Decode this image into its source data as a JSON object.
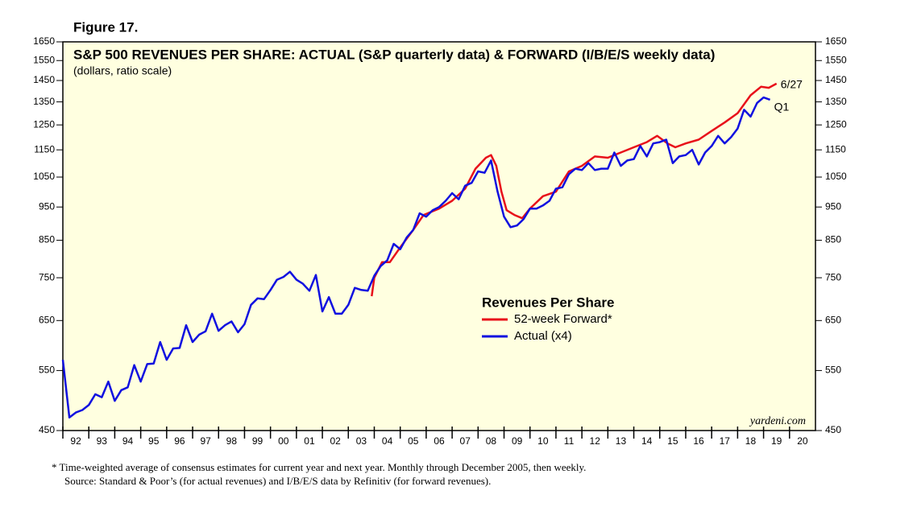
{
  "chart_data": {
    "type": "line",
    "figure": "Figure 17.",
    "title": "S&P 500 REVENUES PER SHARE: ACTUAL (S&P quarterly data) & FORWARD (I/B/E/S weekly data)",
    "subtitle": "(dollars, ratio scale)",
    "legend_title": "Revenues Per Share",
    "log_scale": true,
    "xlim": [
      1992,
      2021
    ],
    "xticks": [
      {
        "value": 1992,
        "label": "92"
      },
      {
        "value": 1993,
        "label": "93"
      },
      {
        "value": 1994,
        "label": "94"
      },
      {
        "value": 1995,
        "label": "95"
      },
      {
        "value": 1996,
        "label": "96"
      },
      {
        "value": 1997,
        "label": "97"
      },
      {
        "value": 1998,
        "label": "98"
      },
      {
        "value": 1999,
        "label": "99"
      },
      {
        "value": 2000,
        "label": "00"
      },
      {
        "value": 2001,
        "label": "01"
      },
      {
        "value": 2002,
        "label": "02"
      },
      {
        "value": 2003,
        "label": "03"
      },
      {
        "value": 2004,
        "label": "04"
      },
      {
        "value": 2005,
        "label": "05"
      },
      {
        "value": 2006,
        "label": "06"
      },
      {
        "value": 2007,
        "label": "07"
      },
      {
        "value": 2008,
        "label": "08"
      },
      {
        "value": 2009,
        "label": "09"
      },
      {
        "value": 2010,
        "label": "10"
      },
      {
        "value": 2011,
        "label": "11"
      },
      {
        "value": 2012,
        "label": "12"
      },
      {
        "value": 2013,
        "label": "13"
      },
      {
        "value": 2014,
        "label": "14"
      },
      {
        "value": 2015,
        "label": "15"
      },
      {
        "value": 2016,
        "label": "16"
      },
      {
        "value": 2017,
        "label": "17"
      },
      {
        "value": 2018,
        "label": "18"
      },
      {
        "value": 2019,
        "label": "19"
      },
      {
        "value": 2020,
        "label": "20"
      }
    ],
    "ylim": [
      450,
      1650
    ],
    "yticks": [
      450,
      550,
      650,
      750,
      850,
      950,
      1050,
      1150,
      1250,
      1350,
      1450,
      1550,
      1650
    ],
    "series": [
      {
        "name": "52-week Forward*",
        "color": "#e8101a",
        "annotation": "6/27",
        "x": [
          2003.9,
          2004.0,
          2004.3,
          2004.6,
          2005.0,
          2005.5,
          2005.9,
          2006.5,
          2007.0,
          2007.5,
          2007.9,
          2008.3,
          2008.5,
          2008.7,
          2008.9,
          2009.1,
          2009.4,
          2009.7,
          2010.0,
          2010.5,
          2011.0,
          2011.5,
          2012.0,
          2012.5,
          2013.0,
          2013.5,
          2014.0,
          2014.5,
          2014.9,
          2015.3,
          2015.6,
          2016.0,
          2016.5,
          2017.0,
          2017.5,
          2018.0,
          2018.5,
          2018.9,
          2019.2,
          2019.5
        ],
        "values": [
          705,
          750,
          790,
          790,
          830,
          880,
          925,
          945,
          970,
          1010,
          1080,
          1120,
          1130,
          1090,
          1000,
          940,
          925,
          915,
          945,
          985,
          1000,
          1070,
          1090,
          1125,
          1120,
          1140,
          1160,
          1180,
          1205,
          1175,
          1160,
          1175,
          1190,
          1225,
          1260,
          1300,
          1380,
          1420,
          1415,
          1435
        ]
      },
      {
        "name": "Actual (x4)",
        "color": "#1010e0",
        "annotation": "Q1",
        "x": [
          1992.0,
          1992.25,
          1992.5,
          1992.75,
          1993.0,
          1993.25,
          1993.5,
          1993.75,
          1994.0,
          1994.25,
          1994.5,
          1994.75,
          1995.0,
          1995.25,
          1995.5,
          1995.75,
          1996.0,
          1996.25,
          1996.5,
          1996.75,
          1997.0,
          1997.25,
          1997.5,
          1997.75,
          1998.0,
          1998.25,
          1998.5,
          1998.75,
          1999.0,
          1999.25,
          1999.5,
          1999.75,
          2000.0,
          2000.25,
          2000.5,
          2000.75,
          2001.0,
          2001.25,
          2001.5,
          2001.75,
          2002.0,
          2002.25,
          2002.5,
          2002.75,
          2003.0,
          2003.25,
          2003.5,
          2003.75,
          2004.0,
          2004.25,
          2004.5,
          2004.75,
          2005.0,
          2005.25,
          2005.5,
          2005.75,
          2006.0,
          2006.25,
          2006.5,
          2006.75,
          2007.0,
          2007.25,
          2007.5,
          2007.75,
          2008.0,
          2008.25,
          2008.5,
          2008.75,
          2009.0,
          2009.25,
          2009.5,
          2009.75,
          2010.0,
          2010.25,
          2010.5,
          2010.75,
          2011.0,
          2011.25,
          2011.5,
          2011.75,
          2012.0,
          2012.25,
          2012.5,
          2012.75,
          2013.0,
          2013.25,
          2013.5,
          2013.75,
          2014.0,
          2014.25,
          2014.5,
          2014.75,
          2015.0,
          2015.25,
          2015.5,
          2015.75,
          2016.0,
          2016.25,
          2016.5,
          2016.75,
          2017.0,
          2017.25,
          2017.5,
          2017.75,
          2018.0,
          2018.25,
          2018.5,
          2018.75,
          2019.0,
          2019.25
        ],
        "values": [
          570,
          470,
          478,
          482,
          490,
          508,
          503,
          530,
          497,
          515,
          520,
          560,
          530,
          562,
          563,
          605,
          570,
          592,
          593,
          640,
          605,
          620,
          627,
          665,
          628,
          640,
          648,
          625,
          642,
          685,
          700,
          698,
          720,
          745,
          752,
          765,
          745,
          735,
          718,
          757,
          670,
          703,
          665,
          665,
          685,
          725,
          720,
          718,
          755,
          780,
          795,
          840,
          825,
          858,
          880,
          930,
          920,
          940,
          950,
          970,
          995,
          975,
          1020,
          1030,
          1070,
          1065,
          1110,
          1000,
          920,
          888,
          893,
          912,
          945,
          945,
          955,
          970,
          1010,
          1015,
          1060,
          1080,
          1075,
          1100,
          1075,
          1080,
          1080,
          1140,
          1090,
          1110,
          1115,
          1165,
          1125,
          1175,
          1180,
          1190,
          1100,
          1125,
          1130,
          1150,
          1095,
          1140,
          1165,
          1205,
          1175,
          1200,
          1235,
          1315,
          1285,
          1345,
          1370,
          1360
        ]
      }
    ],
    "watermark": "yardeni.com",
    "footnotes": [
      "*   Time-weighted average of consensus estimates for current year and next year. Monthly through December 2005, then weekly.",
      "Source: Standard & Poor’s (for actual revenues) and I/B/E/S data by Refinitiv (for forward revenues)."
    ]
  }
}
